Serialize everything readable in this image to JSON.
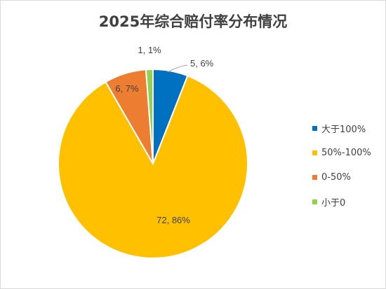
{
  "chart_data": {
    "type": "pie",
    "title": "2025年综合赔付率分布情况",
    "series": [
      {
        "name": "大于100%",
        "value": 5,
        "label": "5, 6%",
        "color": "#0070c0"
      },
      {
        "name": "50%-100%",
        "value": 72,
        "label": "72, 86%",
        "color": "#ffc000"
      },
      {
        "name": "0-50%",
        "value": 6,
        "label": "6, 7%",
        "color": "#ed7d31"
      },
      {
        "name": "小于0",
        "value": 1,
        "label": "1, 1%",
        "color": "#92d050"
      }
    ],
    "legend_position": "right"
  }
}
